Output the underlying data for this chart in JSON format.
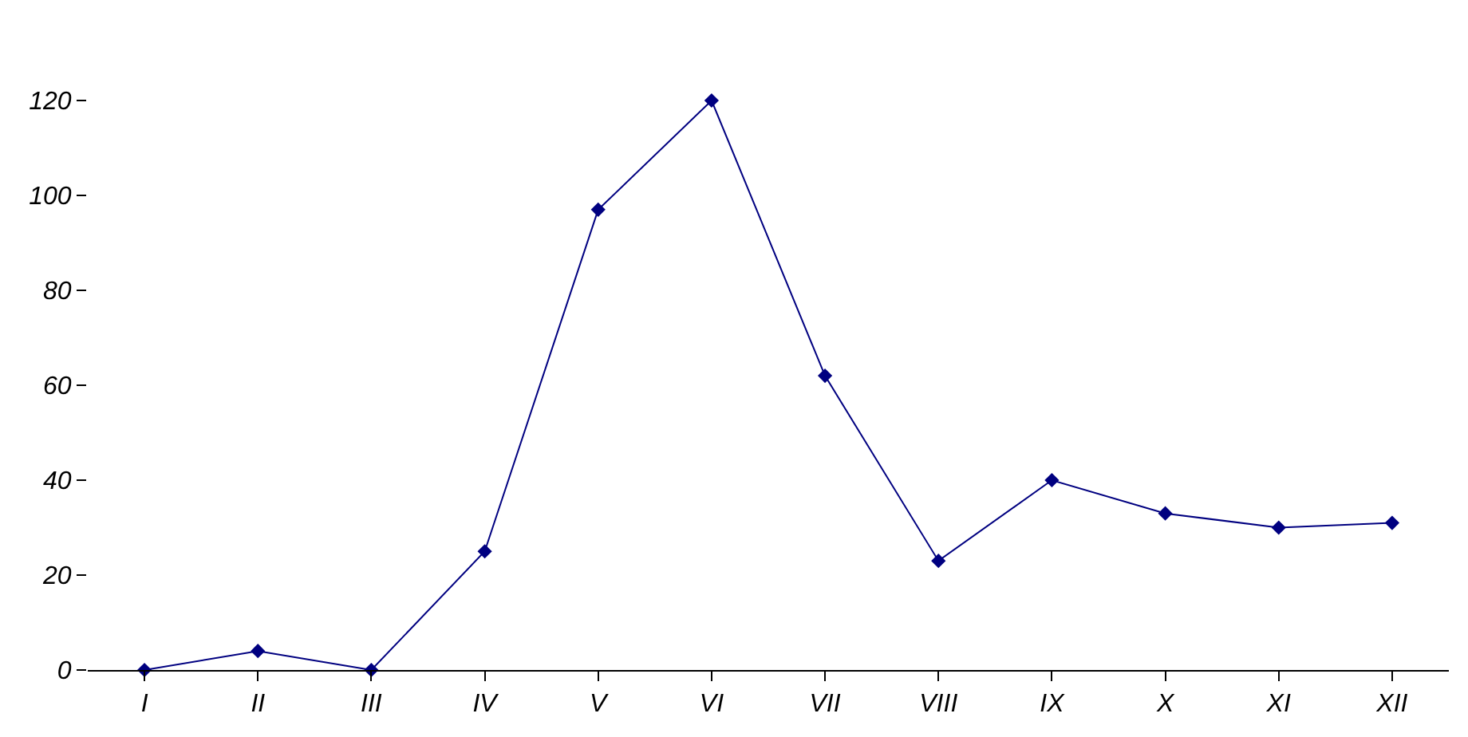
{
  "chart_data": {
    "type": "line",
    "categories": [
      "I",
      "II",
      "III",
      "IV",
      "V",
      "VI",
      "VII",
      "VIII",
      "IX",
      "X",
      "XI",
      "XII"
    ],
    "series": [
      {
        "color": "#000080",
        "values": [
          0,
          4,
          0,
          25,
          97,
          120,
          62,
          23,
          40,
          33,
          30,
          31
        ]
      }
    ],
    "ylim": [
      0,
      120
    ],
    "yticks": [
      0,
      20,
      40,
      60,
      80,
      100,
      120
    ],
    "grid": false,
    "marker": "diamond",
    "line_style": "solid"
  }
}
